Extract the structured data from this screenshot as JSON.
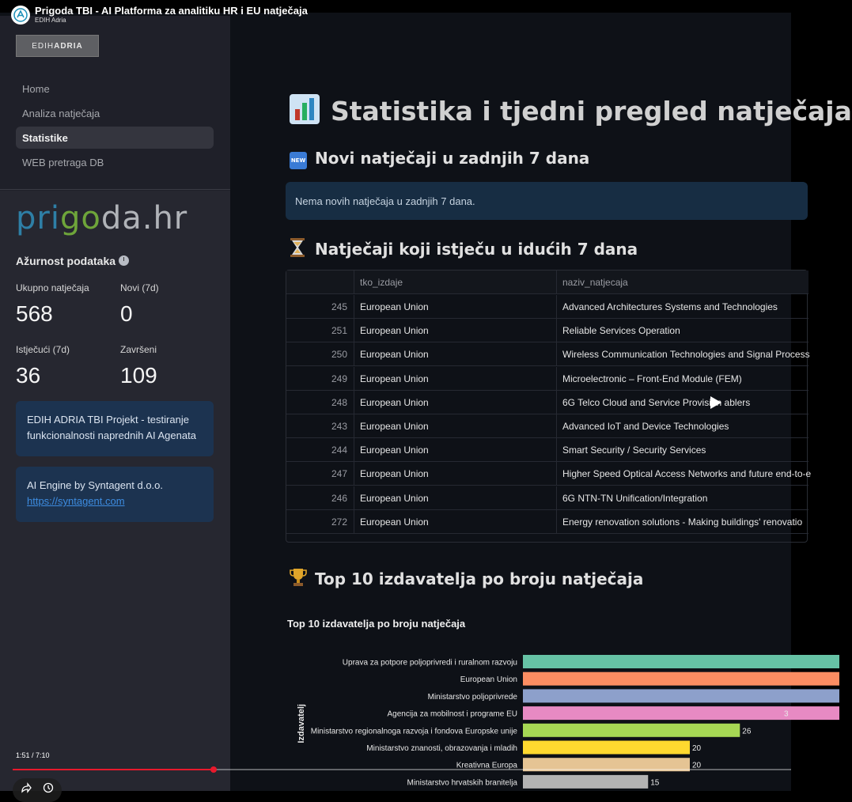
{
  "player": {
    "title": "Prigoda TBI - AI Platforma za analitiku HR i EU natječaja",
    "channel": "EDIH Adria",
    "time": "1:51 / 7:10",
    "progress_fraction": 0.258
  },
  "sidebar": {
    "brand_left": "EDIH",
    "brand_right": "ADRIA",
    "nav": [
      {
        "label": "Home",
        "active": false
      },
      {
        "label": "Analiza natječaja",
        "active": false
      },
      {
        "label": "Statistike",
        "active": true
      },
      {
        "label": "WEB pretraga DB",
        "active": false
      }
    ],
    "logo": {
      "part1": "pri",
      "part2": "go",
      "part3": "da.hr"
    },
    "freshness_title": "Ažurnost podataka",
    "metrics": [
      {
        "label": "Ukupno natječaja",
        "value": "568"
      },
      {
        "label": "Novi (7d)",
        "value": "0"
      },
      {
        "label": "Istječući (7d)",
        "value": "36"
      },
      {
        "label": "Završeni",
        "value": "109"
      }
    ],
    "info1": "EDIH ADRIA TBI Projekt - testiranje funkcionalnosti naprednih AI Agenata",
    "info2_text": "AI Engine by Syntagent d.o.o.",
    "info2_link": "https://syntagent.com"
  },
  "main": {
    "title": "Statistika i tjedni pregled natječaja",
    "section_new": "Novi natječaji u zadnjih 7 dana",
    "new_badge": "NEW",
    "alert": "Nema novih natječaja u zadnjih 7 dana.",
    "section_expiring": "Natječaji koji istječu u idućih 7 dana",
    "table": {
      "columns": [
        "",
        "tko_izdaje",
        "naziv_natjecaja"
      ],
      "rows": [
        {
          "idx": "245",
          "tko": "European Union",
          "naziv": "Advanced Architectures Systems and Technologies"
        },
        {
          "idx": "251",
          "tko": "European Union",
          "naziv": "Reliable Services Operation"
        },
        {
          "idx": "250",
          "tko": "European Union",
          "naziv": "Wireless Communication Technologies and Signal Process"
        },
        {
          "idx": "249",
          "tko": "European Union",
          "naziv": "Microelectronic – Front-End Module (FEM)"
        },
        {
          "idx": "248",
          "tko": "European Union",
          "naziv": "6G Telco Cloud and Service Provision ablers"
        },
        {
          "idx": "243",
          "tko": "European Union",
          "naziv": "Advanced IoT and Device Technologies"
        },
        {
          "idx": "244",
          "tko": "European Union",
          "naziv": "Smart Security / Security Services"
        },
        {
          "idx": "247",
          "tko": "European Union",
          "naziv": "Higher Speed Optical Access Networks and future end-to-e"
        },
        {
          "idx": "246",
          "tko": "European Union",
          "naziv": "6G NTN-TN Unification/Integration"
        },
        {
          "idx": "272",
          "tko": "European Union",
          "naziv": "Energy renovation solutions - Making buildings' renovatio"
        }
      ]
    },
    "section_top": "Top 10 izdavatelja po broju natječaja"
  },
  "chart_data": {
    "type": "bar",
    "orientation": "horizontal",
    "title": "Top 10 izdavatelja po broju natječaja",
    "ylabel": "Izdavatelj",
    "categories": [
      "Uprava za potpore poljoprivredi i ruralnom razvoju",
      "European Union",
      "Ministarstvo poljoprivrede",
      "Agencija za mobilnost i programe EU",
      "Ministarstvo regionalnoga razvoja i fondova Europske unije",
      "Ministarstvo znanosti, obrazovanja i mladih",
      "Kreativna Europa",
      "Ministarstvo hrvatskih branitelja"
    ],
    "values": [
      null,
      null,
      null,
      null,
      26,
      20,
      20,
      15
    ],
    "value_labels": [
      "",
      "",
      "",
      "3",
      "26",
      "20",
      "20",
      "15"
    ],
    "colors": [
      "#66c2a5",
      "#fc8d62",
      "#8da0cb",
      "#e78ac3",
      "#a6d854",
      "#ffd92f",
      "#e5c494",
      "#b3b3b3"
    ]
  }
}
